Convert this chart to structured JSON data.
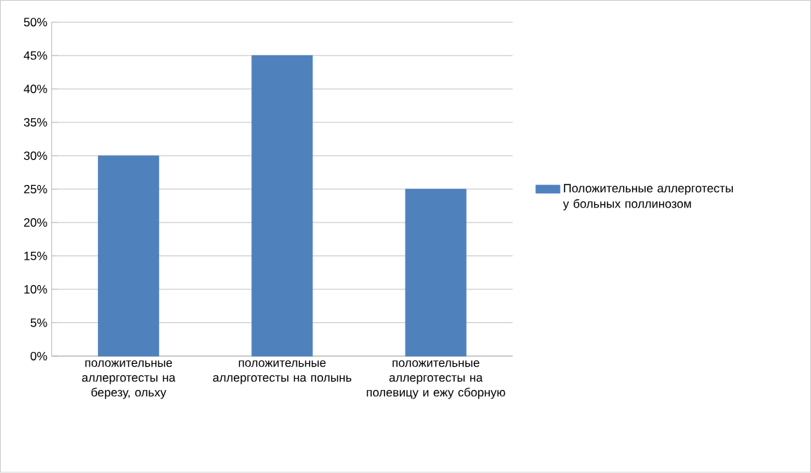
{
  "chart_data": {
    "type": "bar",
    "categories": [
      "положительные аллерготесты на березу, ольху",
      "положительные аллерготесты на полынь",
      "положительные аллерготесты на полевицу и ежу сборную"
    ],
    "series": [
      {
        "name": "Положительные  аллерготесты у больных поллинозом",
        "color": "#4f81bd",
        "values": [
          30,
          45,
          25
        ]
      }
    ],
    "ylim": [
      0,
      50
    ],
    "yticks": [
      {
        "value": 0,
        "label": "0%"
      },
      {
        "value": 5,
        "label": "5%"
      },
      {
        "value": 10,
        "label": "10%"
      },
      {
        "value": 15,
        "label": "15%"
      },
      {
        "value": 20,
        "label": "20%"
      },
      {
        "value": 25,
        "label": "25%"
      },
      {
        "value": 30,
        "label": "30%"
      },
      {
        "value": 35,
        "label": "35%"
      },
      {
        "value": 40,
        "label": "40%"
      },
      {
        "value": 45,
        "label": "45%"
      },
      {
        "value": 50,
        "label": "50%"
      }
    ],
    "grid": "y",
    "legend": "right"
  }
}
